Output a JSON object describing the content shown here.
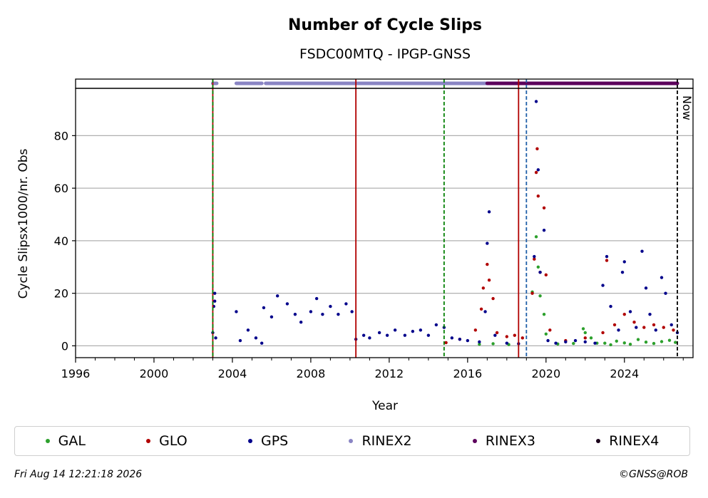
{
  "chart_data": {
    "type": "scatter",
    "title": "Number of Cycle Slips",
    "subtitle": "FSDC00MTQ - IPGP-GNSS",
    "xlabel": "Year",
    "ylabel": "Cycle Slipsx1000/nr. Obs",
    "xlim": [
      1996,
      2027.5
    ],
    "ylim": [
      -4.5,
      98
    ],
    "xticks": [
      1996,
      2000,
      2004,
      2008,
      2012,
      2016,
      2020,
      2024
    ],
    "yticks": [
      0,
      20,
      40,
      60,
      80
    ],
    "grid": "horizontal",
    "legend_position": "bottom",
    "series": [
      {
        "name": "GAL",
        "color": "#2ca02c",
        "points": [
          [
            2016.6,
            0.6
          ],
          [
            2017.3,
            0.8
          ],
          [
            2018.1,
            0.5
          ],
          [
            2019.3,
            20.5
          ],
          [
            2019.5,
            41.5
          ],
          [
            2019.6,
            30.0
          ],
          [
            2019.7,
            19.0
          ],
          [
            2019.9,
            12.0
          ],
          [
            2020.0,
            4.5
          ],
          [
            2020.6,
            0.7
          ],
          [
            2021.4,
            0.9
          ],
          [
            2021.9,
            6.5
          ],
          [
            2022.0,
            5.0
          ],
          [
            2022.3,
            3.0
          ],
          [
            2022.6,
            1.0
          ],
          [
            2023.0,
            1.0
          ],
          [
            2023.3,
            0.4
          ],
          [
            2023.6,
            1.8
          ],
          [
            2024.0,
            1.1
          ],
          [
            2024.3,
            0.6
          ],
          [
            2024.7,
            2.4
          ],
          [
            2025.1,
            1.4
          ],
          [
            2025.5,
            0.9
          ],
          [
            2025.9,
            1.6
          ],
          [
            2026.3,
            2.1
          ],
          [
            2026.6,
            1.3
          ]
        ]
      },
      {
        "name": "GLO",
        "color": "#b10000",
        "points": [
          [
            2014.9,
            1.2
          ],
          [
            2015.6,
            2.5
          ],
          [
            2016.4,
            6.0
          ],
          [
            2016.7,
            14.0
          ],
          [
            2016.8,
            22.0
          ],
          [
            2017.0,
            31.0
          ],
          [
            2017.1,
            25.0
          ],
          [
            2017.3,
            18.0
          ],
          [
            2017.5,
            5.0
          ],
          [
            2018.0,
            3.5
          ],
          [
            2018.4,
            4.0
          ],
          [
            2018.8,
            3.0
          ],
          [
            2019.3,
            20.0
          ],
          [
            2019.4,
            33.0
          ],
          [
            2019.5,
            66.0
          ],
          [
            2019.55,
            75.0
          ],
          [
            2019.6,
            57.0
          ],
          [
            2019.7,
            28.0
          ],
          [
            2019.9,
            52.5
          ],
          [
            2020.0,
            27.0
          ],
          [
            2020.2,
            6.0
          ],
          [
            2021.0,
            2.0
          ],
          [
            2022.0,
            3.0
          ],
          [
            2022.9,
            5.0
          ],
          [
            2023.1,
            32.5
          ],
          [
            2023.5,
            8.0
          ],
          [
            2024.0,
            12.0
          ],
          [
            2024.5,
            9.0
          ],
          [
            2025.0,
            7.0
          ],
          [
            2025.5,
            8.0
          ],
          [
            2026.0,
            7.0
          ],
          [
            2026.5,
            6.0
          ]
        ]
      },
      {
        "name": "GPS",
        "color": "#00008b",
        "points": [
          [
            2003.0,
            5.0
          ],
          [
            2003.05,
            15.0
          ],
          [
            2003.1,
            17.0
          ],
          [
            2003.1,
            20.0
          ],
          [
            2003.15,
            3.0
          ],
          [
            2004.2,
            13.0
          ],
          [
            2004.4,
            2.0
          ],
          [
            2004.8,
            6.0
          ],
          [
            2005.2,
            3.0
          ],
          [
            2005.5,
            1.0
          ],
          [
            2005.6,
            14.5
          ],
          [
            2006.0,
            11.0
          ],
          [
            2006.3,
            19.0
          ],
          [
            2006.8,
            16.0
          ],
          [
            2007.2,
            12.0
          ],
          [
            2007.5,
            9.0
          ],
          [
            2008.0,
            13.0
          ],
          [
            2008.3,
            18.0
          ],
          [
            2008.6,
            12.0
          ],
          [
            2009.0,
            15.0
          ],
          [
            2009.4,
            12.0
          ],
          [
            2009.8,
            16.0
          ],
          [
            2010.1,
            13.0
          ],
          [
            2010.3,
            2.5
          ],
          [
            2010.7,
            4.0
          ],
          [
            2011.0,
            3.0
          ],
          [
            2011.5,
            5.0
          ],
          [
            2011.9,
            4.0
          ],
          [
            2012.3,
            6.0
          ],
          [
            2012.8,
            4.0
          ],
          [
            2013.2,
            5.5
          ],
          [
            2013.6,
            6.0
          ],
          [
            2014.0,
            4.0
          ],
          [
            2014.4,
            8.0
          ],
          [
            2014.8,
            7.0
          ],
          [
            2015.2,
            3.0
          ],
          [
            2015.6,
            2.5
          ],
          [
            2016.0,
            2.0
          ],
          [
            2016.6,
            1.5
          ],
          [
            2016.9,
            13.0
          ],
          [
            2017.0,
            39.0
          ],
          [
            2017.1,
            51.0
          ],
          [
            2017.4,
            4.0
          ],
          [
            2018.0,
            1.0
          ],
          [
            2018.6,
            0.8
          ],
          [
            2019.4,
            34.0
          ],
          [
            2019.5,
            93.0
          ],
          [
            2019.6,
            67.0
          ],
          [
            2019.7,
            28.0
          ],
          [
            2019.9,
            44.0
          ],
          [
            2020.1,
            2.0
          ],
          [
            2020.5,
            1.0
          ],
          [
            2021.0,
            1.5
          ],
          [
            2021.5,
            2.0
          ],
          [
            2022.0,
            1.5
          ],
          [
            2022.5,
            1.0
          ],
          [
            2022.9,
            23.0
          ],
          [
            2023.1,
            34.0
          ],
          [
            2023.3,
            15.0
          ],
          [
            2023.7,
            6.0
          ],
          [
            2023.9,
            28.0
          ],
          [
            2024.0,
            32.0
          ],
          [
            2024.3,
            13.0
          ],
          [
            2024.6,
            7.0
          ],
          [
            2024.9,
            36.0
          ],
          [
            2025.1,
            22.0
          ],
          [
            2025.3,
            12.0
          ],
          [
            2025.6,
            6.0
          ],
          [
            2025.9,
            26.0
          ],
          [
            2026.1,
            20.0
          ],
          [
            2026.4,
            8.0
          ],
          [
            2026.7,
            5.0
          ]
        ]
      }
    ],
    "format_bands": [
      {
        "name": "RINEX2",
        "color": "#8a85c4",
        "ranges": [
          [
            2003.0,
            2003.2
          ],
          [
            2004.2,
            2005.5
          ],
          [
            2005.7,
            2017.0
          ]
        ]
      },
      {
        "name": "RINEX3",
        "color": "#5c005c",
        "ranges": [
          [
            2017.0,
            2026.7
          ]
        ]
      },
      {
        "name": "RINEX4",
        "color": "#1a001a",
        "ranges": []
      }
    ],
    "vertical_lines": [
      {
        "x": 2003.0,
        "color": "#b10000",
        "style": "solid"
      },
      {
        "x": 2003.0,
        "color": "#008000",
        "style": "dashed"
      },
      {
        "x": 2010.3,
        "color": "#b10000",
        "style": "solid"
      },
      {
        "x": 2014.8,
        "color": "#008000",
        "style": "dashed"
      },
      {
        "x": 2018.6,
        "color": "#b10000",
        "style": "solid"
      },
      {
        "x": 2019.0,
        "color": "#1f5fa8",
        "style": "dashed"
      },
      {
        "x": 2026.7,
        "color": "#000000",
        "style": "dashed"
      }
    ],
    "now_label": "Now"
  },
  "legend": [
    {
      "name": "GAL",
      "color": "#2ca02c"
    },
    {
      "name": "GLO",
      "color": "#b10000"
    },
    {
      "name": "GPS",
      "color": "#00008b"
    },
    {
      "name": "RINEX2",
      "color": "#8a85c4"
    },
    {
      "name": "RINEX3",
      "color": "#5c005c"
    },
    {
      "name": "RINEX4",
      "color": "#1a001a"
    }
  ],
  "footer": {
    "timestamp": "Fri Aug 14 12:21:18 2026",
    "credit": "©GNSS@ROB"
  }
}
